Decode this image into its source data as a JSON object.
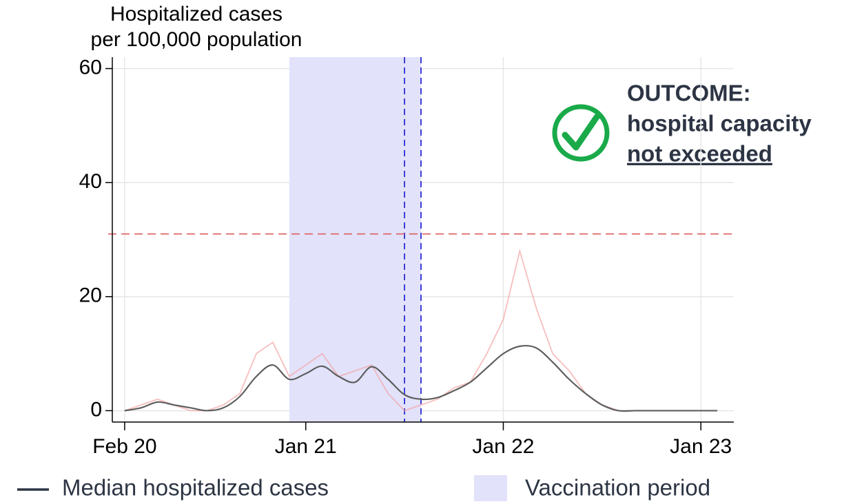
{
  "chart_data": {
    "type": "line",
    "y_label": [
      "Hospitalized cases",
      "per 100,000 population"
    ],
    "x": [
      "2020-02",
      "2020-03",
      "2020-04",
      "2020-05",
      "2020-06",
      "2020-07",
      "2020-08",
      "2020-09",
      "2020-10",
      "2020-11",
      "2020-12",
      "2021-01",
      "2021-02",
      "2021-03",
      "2021-04",
      "2021-05",
      "2021-06",
      "2021-07",
      "2021-08",
      "2021-09",
      "2021-10",
      "2021-11",
      "2021-12",
      "2022-01",
      "2022-02",
      "2022-03",
      "2022-04",
      "2022-05",
      "2022-06",
      "2022-07",
      "2022-08",
      "2022-09",
      "2022-10",
      "2022-11",
      "2022-12",
      "2023-01",
      "2023-02"
    ],
    "series": [
      {
        "color": "#f4a3a3",
        "values": [
          0,
          1,
          2,
          1,
          0,
          0,
          1,
          3,
          10,
          12,
          6,
          8,
          10,
          6,
          7,
          8,
          3,
          0,
          1,
          2,
          4,
          5,
          10,
          16,
          28,
          18,
          10,
          7,
          3,
          1,
          0,
          0,
          0,
          null,
          null,
          null,
          null
        ]
      },
      {
        "name": "Median hospitalized cases",
        "color": "#5e5e5e",
        "legend_color": "#2d3544",
        "values": [
          0,
          0.5,
          1.5,
          1,
          0.5,
          0,
          0.5,
          2.5,
          6,
          8,
          5.5,
          6.5,
          7.8,
          6,
          5,
          7.7,
          5.5,
          2.8,
          2,
          2.3,
          3.5,
          5,
          7.5,
          10,
          11.3,
          11,
          8.5,
          5.5,
          3,
          1,
          0,
          0,
          0,
          0,
          0,
          0,
          0
        ]
      }
    ],
    "spans": [
      {
        "name": "Vaccination period",
        "x": [
          "2020-12",
          "2021-08"
        ],
        "color": "#e2e2fb"
      }
    ],
    "vlines": [
      {
        "x": "2021-07",
        "color": "#2b2bd1"
      },
      {
        "x": "2021-08",
        "color": "#2b2bd1"
      }
    ],
    "hlines": [
      {
        "y": 31,
        "color": "#e06666"
      }
    ],
    "xlim": [
      "2020-01",
      "2023-03"
    ],
    "xticks": [
      {
        "value": "2020-02",
        "label": "Feb 20"
      },
      {
        "value": "2021-01",
        "label": "Jan 21"
      },
      {
        "value": "2022-01",
        "label": "Jan 22"
      },
      {
        "value": "2023-01",
        "label": "Jan 23"
      }
    ],
    "ylim": [
      -2,
      62
    ],
    "yticks": [
      0,
      20,
      40,
      60
    ],
    "grid": true,
    "annotation": [
      "OUTCOME:",
      "hospital capacity",
      "not exceeded"
    ]
  }
}
